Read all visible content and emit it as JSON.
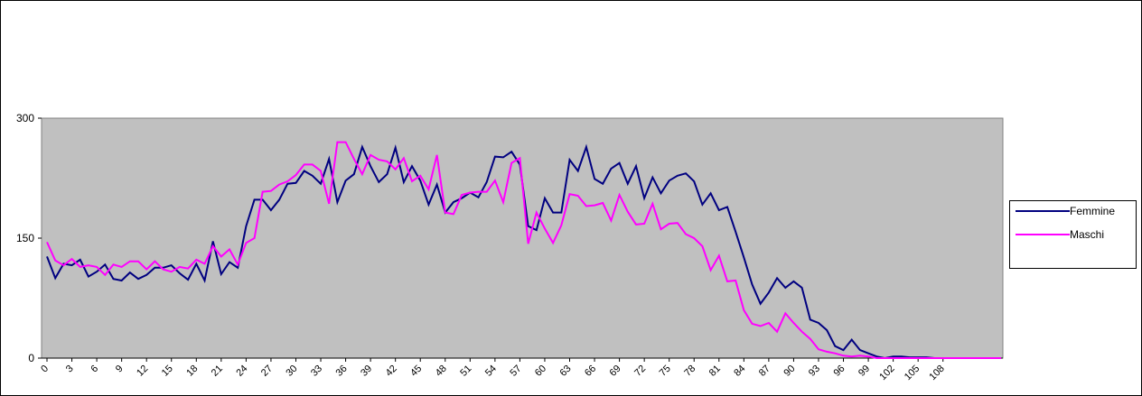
{
  "chart_data": {
    "type": "line",
    "x": [
      0,
      1,
      2,
      3,
      4,
      5,
      6,
      7,
      8,
      9,
      10,
      11,
      12,
      13,
      14,
      15,
      16,
      17,
      18,
      19,
      20,
      21,
      22,
      23,
      24,
      25,
      26,
      27,
      28,
      29,
      30,
      31,
      32,
      33,
      34,
      35,
      36,
      37,
      38,
      39,
      40,
      41,
      42,
      43,
      44,
      45,
      46,
      47,
      48,
      49,
      50,
      51,
      52,
      53,
      54,
      55,
      56,
      57,
      58,
      59,
      60,
      61,
      62,
      63,
      64,
      65,
      66,
      67,
      68,
      69,
      70,
      71,
      72,
      73,
      74,
      75,
      76,
      77,
      78,
      79,
      80,
      81,
      82,
      83,
      84,
      85,
      86,
      87,
      88,
      89,
      90,
      91,
      92,
      93,
      94,
      95,
      96,
      97,
      98,
      99,
      100,
      101,
      102,
      103,
      104,
      105,
      106,
      107,
      108,
      109,
      110,
      111,
      112,
      113,
      114,
      115
    ],
    "series": [
      {
        "name": "Femmine",
        "color": "#000080",
        "values": [
          127,
          100,
          118,
          116,
          123,
          102,
          108,
          117,
          99,
          97,
          107,
          99,
          104,
          113,
          113,
          116,
          106,
          98,
          118,
          97,
          146,
          105,
          120,
          113,
          165,
          198,
          198,
          185,
          198,
          218,
          219,
          234,
          228,
          218,
          249,
          195,
          222,
          230,
          264,
          240,
          220,
          230,
          263,
          220,
          240,
          222,
          192,
          217,
          182,
          195,
          200,
          207,
          201,
          220,
          252,
          251,
          258,
          242,
          165,
          160,
          200,
          182,
          182,
          248,
          234,
          264,
          224,
          218,
          237,
          244,
          218,
          240,
          200,
          226,
          206,
          222,
          228,
          231,
          221,
          192,
          206,
          185,
          189,
          158,
          126,
          92,
          68,
          82,
          100,
          88,
          96,
          88,
          48,
          44,
          35,
          15,
          10,
          23,
          10,
          6,
          2,
          0,
          2,
          2,
          1,
          1,
          1,
          0,
          0,
          0,
          0,
          0,
          0,
          0,
          0,
          0
        ]
      },
      {
        "name": "Maschi",
        "color": "#ff00ff",
        "values": [
          145,
          122,
          116,
          124,
          114,
          116,
          114,
          104,
          117,
          114,
          121,
          121,
          111,
          121,
          111,
          108,
          114,
          112,
          123,
          118,
          140,
          127,
          136,
          117,
          144,
          150,
          208,
          209,
          217,
          221,
          229,
          242,
          242,
          234,
          193,
          270,
          270,
          249,
          230,
          254,
          248,
          246,
          236,
          250,
          221,
          228,
          211,
          254,
          182,
          180,
          204,
          207,
          208,
          208,
          222,
          195,
          244,
          250,
          143,
          182,
          162,
          144,
          166,
          205,
          203,
          190,
          191,
          194,
          172,
          204,
          183,
          167,
          168,
          193,
          161,
          168,
          169,
          155,
          150,
          140,
          110,
          128,
          96,
          97,
          60,
          43,
          40,
          44,
          33,
          56,
          44,
          33,
          24,
          11,
          8,
          6,
          3,
          2,
          3,
          2,
          0,
          0,
          0,
          0,
          0,
          0,
          0,
          0,
          0,
          0,
          0,
          0,
          0,
          0,
          0,
          0
        ]
      }
    ],
    "xlim": [
      0,
      115
    ],
    "xticks": [
      0,
      3,
      6,
      9,
      12,
      15,
      18,
      21,
      24,
      27,
      30,
      33,
      36,
      39,
      42,
      45,
      48,
      51,
      54,
      57,
      60,
      63,
      66,
      69,
      72,
      75,
      78,
      81,
      84,
      87,
      90,
      93,
      96,
      99,
      102,
      105,
      108
    ],
    "ylim": [
      0,
      300
    ],
    "yticks": [
      0,
      150,
      300
    ],
    "grid": false,
    "legend": "right"
  }
}
